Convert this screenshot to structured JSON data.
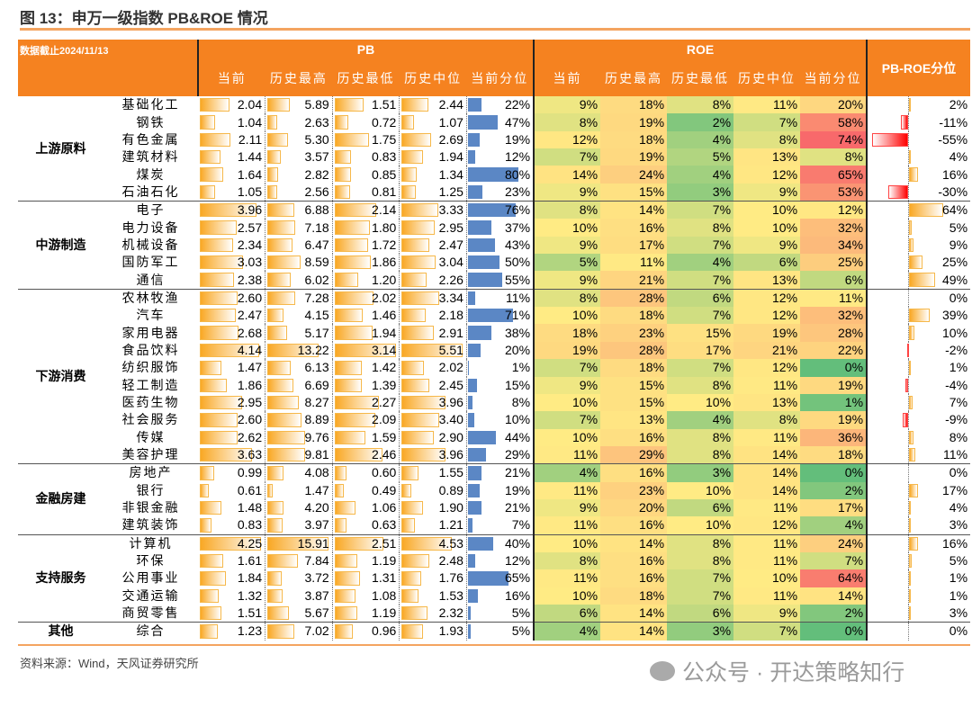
{
  "title": "图 13：申万一级指数 PB&ROE 情况",
  "date_note": "数据截止2024/11/13",
  "pb_header": "PB",
  "roe_header": "ROE",
  "pbroe_header": "PB-ROE分位",
  "sub_headers": [
    "当前",
    "历史最高",
    "历史最低",
    "历史中位",
    "当前分位"
  ],
  "source": "资料来源：Wind，天风证券研究所",
  "watermark": "公众号 · 开达策略知行",
  "colors": {
    "header": "#f58220",
    "pb_bar": "#f9a825",
    "pct_bar": "#5b87c5",
    "neg_bar": "#ff0000",
    "roe_low": "#63be7b",
    "roe_mid": "#ffeb84",
    "roe_high": "#f8696b"
  },
  "groups": [
    {
      "name": "上游原料",
      "rows": [
        [
          "基础化工",
          "2.04",
          "5.89",
          "1.51",
          "2.44",
          "22%",
          "9%",
          "18%",
          "8%",
          "11%",
          "20%",
          "2%"
        ],
        [
          "钢铁",
          "1.04",
          "2.63",
          "0.72",
          "1.07",
          "47%",
          "8%",
          "19%",
          "2%",
          "7%",
          "58%",
          "-11%"
        ],
        [
          "有色金属",
          "2.11",
          "5.30",
          "1.75",
          "2.69",
          "19%",
          "12%",
          "18%",
          "4%",
          "8%",
          "74%",
          "-55%"
        ],
        [
          "建筑材料",
          "1.44",
          "3.57",
          "0.83",
          "1.94",
          "12%",
          "7%",
          "19%",
          "5%",
          "13%",
          "8%",
          "4%"
        ],
        [
          "煤炭",
          "1.64",
          "2.82",
          "0.85",
          "1.34",
          "80%",
          "14%",
          "24%",
          "4%",
          "12%",
          "65%",
          "16%"
        ],
        [
          "石油石化",
          "1.05",
          "2.56",
          "0.81",
          "1.25",
          "23%",
          "9%",
          "15%",
          "3%",
          "9%",
          "53%",
          "-30%"
        ]
      ]
    },
    {
      "name": "中游制造",
      "rows": [
        [
          "电子",
          "3.96",
          "6.88",
          "2.14",
          "3.33",
          "76%",
          "8%",
          "14%",
          "7%",
          "10%",
          "12%",
          "64%"
        ],
        [
          "电力设备",
          "2.57",
          "7.18",
          "1.80",
          "2.95",
          "37%",
          "10%",
          "16%",
          "8%",
          "10%",
          "32%",
          "5%"
        ],
        [
          "机械设备",
          "2.34",
          "6.47",
          "1.72",
          "2.47",
          "43%",
          "9%",
          "17%",
          "7%",
          "9%",
          "34%",
          "9%"
        ],
        [
          "国防军工",
          "3.03",
          "8.59",
          "1.86",
          "3.04",
          "50%",
          "5%",
          "11%",
          "4%",
          "6%",
          "25%",
          "25%"
        ],
        [
          "通信",
          "2.38",
          "6.02",
          "1.20",
          "2.26",
          "55%",
          "9%",
          "21%",
          "7%",
          "13%",
          "6%",
          "49%"
        ]
      ]
    },
    {
      "name": "下游消费",
      "rows": [
        [
          "农林牧渔",
          "2.60",
          "7.28",
          "2.02",
          "3.34",
          "11%",
          "8%",
          "28%",
          "6%",
          "12%",
          "11%",
          "0%"
        ],
        [
          "汽车",
          "2.47",
          "4.15",
          "1.46",
          "2.18",
          "71%",
          "10%",
          "18%",
          "7%",
          "12%",
          "32%",
          "39%"
        ],
        [
          "家用电器",
          "2.68",
          "5.17",
          "1.94",
          "2.91",
          "38%",
          "18%",
          "23%",
          "15%",
          "19%",
          "28%",
          "10%"
        ],
        [
          "食品饮料",
          "4.14",
          "13.22",
          "3.14",
          "5.51",
          "20%",
          "19%",
          "28%",
          "17%",
          "21%",
          "22%",
          "-2%"
        ],
        [
          "纺织服饰",
          "1.47",
          "6.13",
          "1.42",
          "2.02",
          "1%",
          "7%",
          "18%",
          "7%",
          "12%",
          "0%",
          "1%"
        ],
        [
          "轻工制造",
          "1.86",
          "6.69",
          "1.39",
          "2.45",
          "15%",
          "9%",
          "15%",
          "8%",
          "11%",
          "19%",
          "-4%"
        ],
        [
          "医药生物",
          "2.95",
          "8.27",
          "2.27",
          "3.96",
          "8%",
          "10%",
          "15%",
          "10%",
          "13%",
          "1%",
          "7%"
        ],
        [
          "社会服务",
          "2.60",
          "8.89",
          "2.09",
          "3.40",
          "10%",
          "7%",
          "13%",
          "4%",
          "8%",
          "19%",
          "-9%"
        ],
        [
          "传媒",
          "2.62",
          "9.76",
          "1.59",
          "2.90",
          "44%",
          "10%",
          "16%",
          "8%",
          "11%",
          "36%",
          "8%"
        ],
        [
          "美容护理",
          "3.63",
          "9.81",
          "2.46",
          "3.96",
          "29%",
          "11%",
          "29%",
          "8%",
          "14%",
          "18%",
          "11%"
        ]
      ]
    },
    {
      "name": "金融房建",
      "rows": [
        [
          "房地产",
          "0.99",
          "4.08",
          "0.60",
          "1.55",
          "21%",
          "4%",
          "16%",
          "3%",
          "14%",
          "0%",
          "0%"
        ],
        [
          "银行",
          "0.61",
          "1.47",
          "0.49",
          "0.89",
          "19%",
          "11%",
          "23%",
          "10%",
          "14%",
          "2%",
          "17%"
        ],
        [
          "非银金融",
          "1.48",
          "4.20",
          "1.06",
          "1.90",
          "21%",
          "9%",
          "20%",
          "6%",
          "11%",
          "17%",
          "4%"
        ],
        [
          "建筑装饰",
          "0.83",
          "3.97",
          "0.63",
          "1.21",
          "7%",
          "11%",
          "16%",
          "10%",
          "12%",
          "4%",
          "3%"
        ]
      ]
    },
    {
      "name": "支持服务",
      "rows": [
        [
          "计算机",
          "4.25",
          "15.91",
          "2.51",
          "4.53",
          "40%",
          "10%",
          "14%",
          "8%",
          "11%",
          "24%",
          "16%"
        ],
        [
          "环保",
          "1.61",
          "7.84",
          "1.19",
          "2.48",
          "12%",
          "8%",
          "16%",
          "8%",
          "11%",
          "7%",
          "5%"
        ],
        [
          "公用事业",
          "1.84",
          "3.72",
          "1.31",
          "1.76",
          "65%",
          "11%",
          "16%",
          "7%",
          "10%",
          "64%",
          "1%"
        ],
        [
          "交通运输",
          "1.32",
          "3.87",
          "1.08",
          "1.53",
          "16%",
          "10%",
          "18%",
          "7%",
          "11%",
          "14%",
          "1%"
        ],
        [
          "商贸零售",
          "1.51",
          "5.67",
          "1.19",
          "2.32",
          "5%",
          "6%",
          "14%",
          "6%",
          "9%",
          "2%",
          "3%"
        ]
      ]
    },
    {
      "name": "其他",
      "rows": [
        [
          "综合",
          "1.23",
          "7.02",
          "0.96",
          "1.93",
          "5%",
          "4%",
          "14%",
          "3%",
          "7%",
          "0%",
          "0%"
        ]
      ]
    }
  ]
}
